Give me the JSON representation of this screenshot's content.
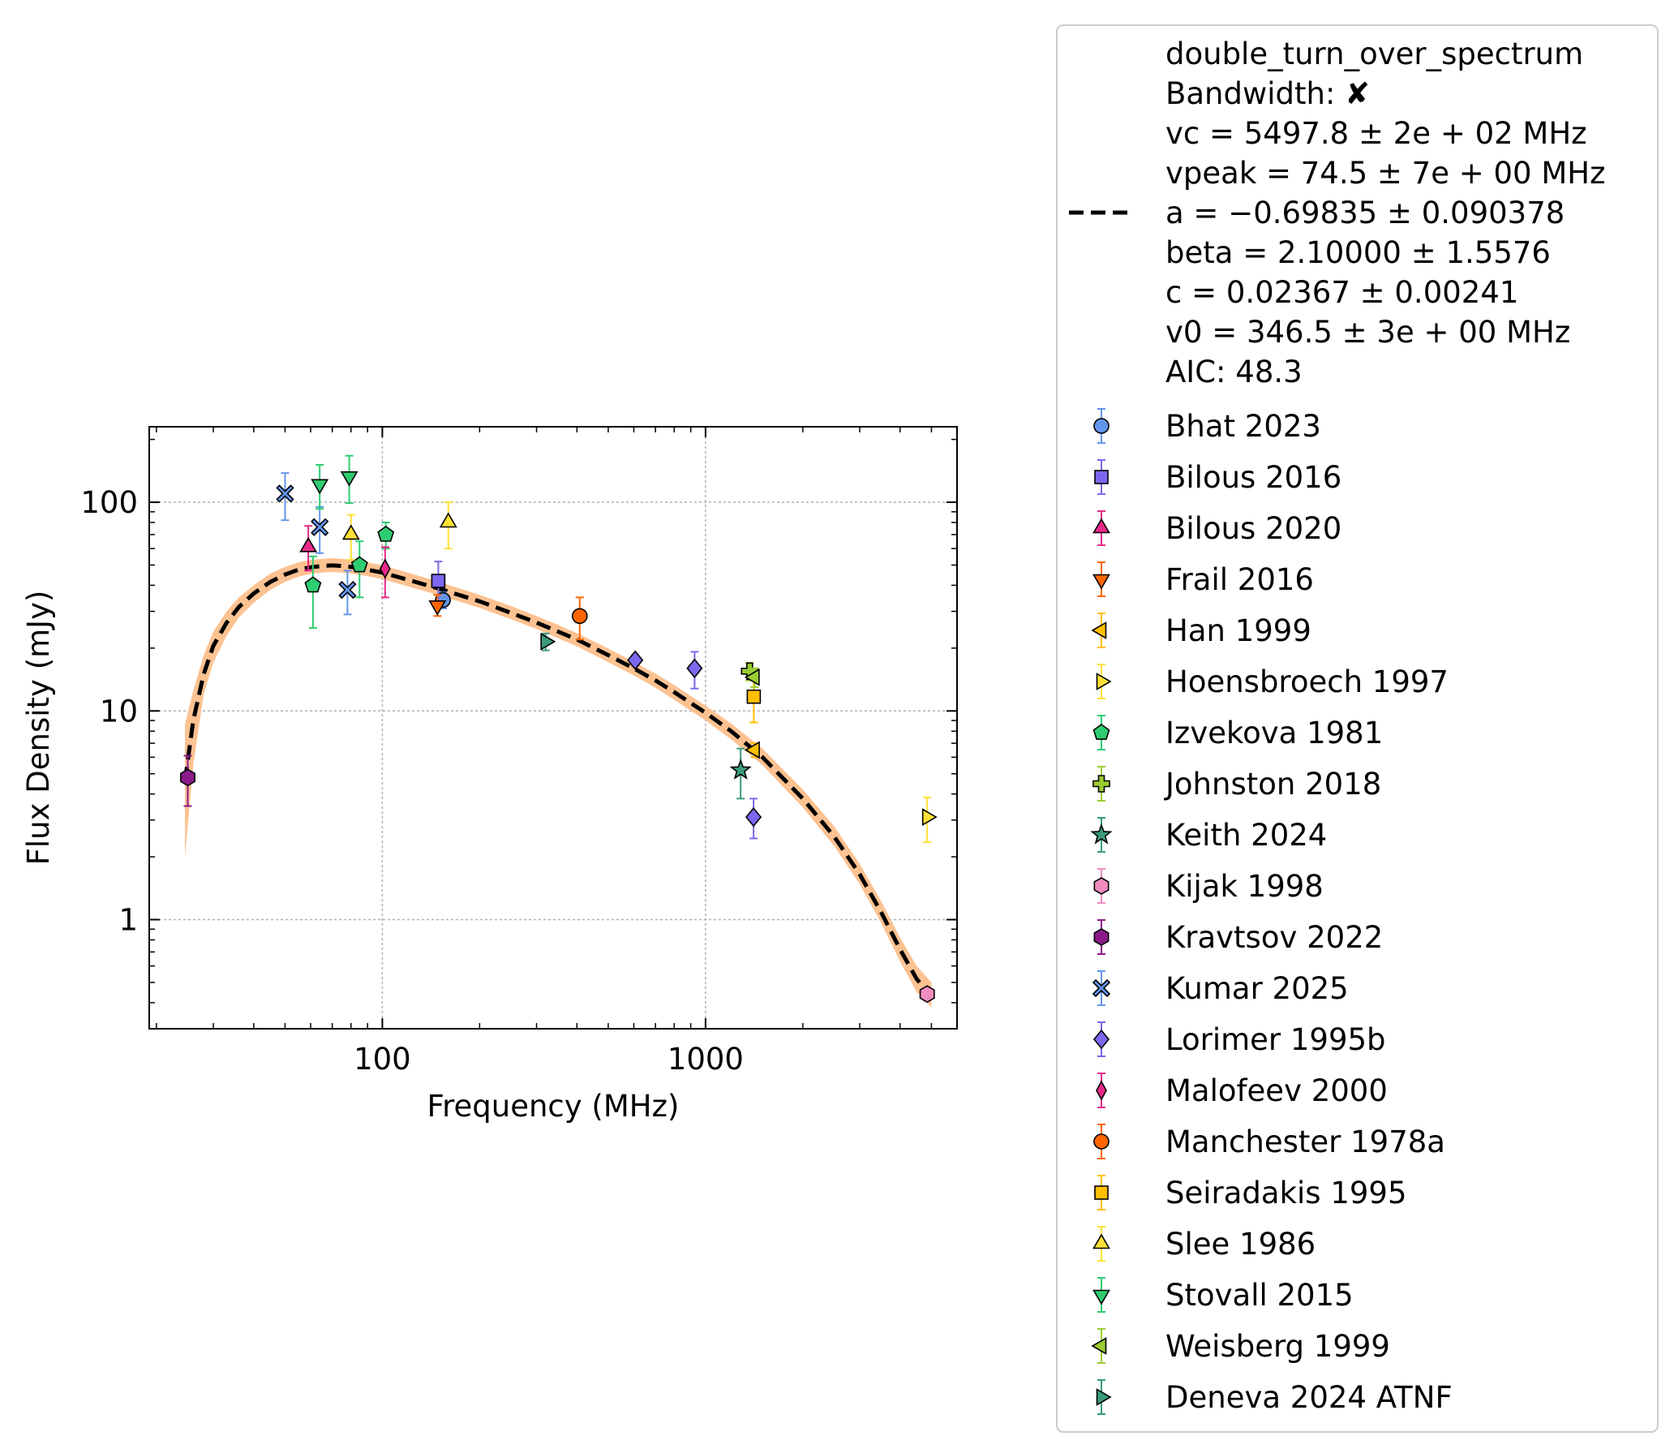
{
  "chart_data": {
    "type": "scatter",
    "xlabel": "Frequency (MHz)",
    "ylabel": "Flux Density (mJy)",
    "xscale": "log",
    "yscale": "log",
    "xlim": [
      19,
      6000
    ],
    "ylim": [
      0.3,
      230
    ],
    "grid": true,
    "x_ticks": [
      {
        "value": 100,
        "label": "100"
      },
      {
        "value": 1000,
        "label": "1000"
      }
    ],
    "y_ticks": [
      {
        "value": 1,
        "label": "1"
      },
      {
        "value": 10,
        "label": "10"
      },
      {
        "value": 100,
        "label": "100"
      }
    ],
    "legend_position": "outside-right",
    "fit": {
      "label_lines": [
        "double_turn_over_spectrum",
        "Bandwidth: ✘",
        "vc = 5497.8 ± 2e + 02 MHz",
        "vpeak = 74.5 ± 7e + 00 MHz",
        "a = −0.69835 ± 0.090378",
        "beta = 2.10000 ± 1.5576",
        "c = 0.02367 ± 0.00241",
        "v0 = 346.5 ± 3e + 00 MHz",
        "AIC: 48.3"
      ],
      "line_color": "#000000",
      "band_color": "#fdbf8c",
      "curve": [
        [
          24.5,
          4.6
        ],
        [
          26,
          9.0
        ],
        [
          28,
          15
        ],
        [
          30,
          20.5
        ],
        [
          33,
          26.5
        ],
        [
          36,
          31.5
        ],
        [
          40,
          36.5
        ],
        [
          45,
          41.5
        ],
        [
          50,
          45
        ],
        [
          55,
          47.5
        ],
        [
          60,
          48.8
        ],
        [
          65,
          49.5
        ],
        [
          70,
          49.8
        ],
        [
          75,
          49.5
        ],
        [
          80,
          49.0
        ],
        [
          90,
          47.5
        ],
        [
          100,
          46.0
        ],
        [
          120,
          42.5
        ],
        [
          150,
          38.5
        ],
        [
          200,
          33.5
        ],
        [
          250,
          29.5
        ],
        [
          300,
          26.5
        ],
        [
          350,
          24
        ],
        [
          400,
          22
        ],
        [
          500,
          18.5
        ],
        [
          600,
          16
        ],
        [
          700,
          14
        ],
        [
          800,
          12.3
        ],
        [
          1000,
          9.8
        ],
        [
          1200,
          8.0
        ],
        [
          1500,
          6.0
        ],
        [
          2000,
          3.8
        ],
        [
          2500,
          2.5
        ],
        [
          3000,
          1.65
        ],
        [
          3500,
          1.08
        ],
        [
          4000,
          0.72
        ],
        [
          4500,
          0.52
        ],
        [
          5000,
          0.43
        ]
      ],
      "band": [
        [
          24.5,
          2.0,
          8.6
        ],
        [
          26,
          5.5,
          12.5
        ],
        [
          28,
          12,
          18.5
        ],
        [
          30,
          17,
          24
        ],
        [
          33,
          23,
          30
        ],
        [
          36,
          28,
          35
        ],
        [
          40,
          33,
          40
        ],
        [
          45,
          38,
          45.5
        ],
        [
          50,
          41.5,
          49
        ],
        [
          55,
          44,
          51.5
        ],
        [
          60,
          45.3,
          53
        ],
        [
          65,
          46,
          53.5
        ],
        [
          70,
          46.3,
          54
        ],
        [
          75,
          46,
          53.5
        ],
        [
          80,
          45.6,
          53
        ],
        [
          90,
          44.2,
          51.5
        ],
        [
          100,
          42.8,
          49.8
        ],
        [
          120,
          39.5,
          46
        ],
        [
          150,
          35.8,
          41.5
        ],
        [
          200,
          31.2,
          36
        ],
        [
          250,
          27.5,
          31.8
        ],
        [
          300,
          24.7,
          28.5
        ],
        [
          350,
          22.3,
          25.8
        ],
        [
          400,
          20.4,
          23.6
        ],
        [
          500,
          17.1,
          19.9
        ],
        [
          600,
          14.8,
          17.2
        ],
        [
          700,
          12.9,
          15.1
        ],
        [
          800,
          11.3,
          13.3
        ],
        [
          1000,
          9.0,
          10.6
        ],
        [
          1200,
          7.3,
          8.7
        ],
        [
          1500,
          5.5,
          6.6
        ],
        [
          2000,
          3.45,
          4.2
        ],
        [
          2500,
          2.25,
          2.8
        ],
        [
          3000,
          1.48,
          1.85
        ],
        [
          3500,
          0.96,
          1.22
        ],
        [
          4000,
          0.63,
          0.82
        ],
        [
          4500,
          0.45,
          0.6
        ],
        [
          5000,
          0.38,
          0.5
        ]
      ]
    },
    "series": [
      {
        "name": "Bhat 2023",
        "marker": "circle",
        "color": "#6495ed",
        "points": [
          {
            "x": 154,
            "y": 34,
            "ylo": 31,
            "yhi": 37
          }
        ]
      },
      {
        "name": "Bilous 2016",
        "marker": "square",
        "color": "#7b68ee",
        "points": [
          {
            "x": 149,
            "y": 42,
            "ylo": 33,
            "yhi": 52
          }
        ]
      },
      {
        "name": "Bilous 2020",
        "marker": "triangle-up",
        "color": "#e7298a",
        "points": [
          {
            "x": 59,
            "y": 61,
            "ylo": 47,
            "yhi": 77
          }
        ]
      },
      {
        "name": "Frail 2016",
        "marker": "triangle-down",
        "color": "#ff6600",
        "points": [
          {
            "x": 148,
            "y": 32,
            "ylo": 28.5,
            "yhi": 36
          }
        ]
      },
      {
        "name": "Han 1999",
        "marker": "triangle-left",
        "color": "#ffbf00",
        "points": [
          {
            "x": 1420,
            "y": 6.5,
            "ylo": 6.0,
            "yhi": 7.0
          }
        ]
      },
      {
        "name": "Hoensbroech 1997",
        "marker": "triangle-right",
        "color": "#ffe135",
        "points": [
          {
            "x": 4850,
            "y": 3.1,
            "ylo": 2.35,
            "yhi": 3.85
          }
        ]
      },
      {
        "name": "Izvekova 1981",
        "marker": "pentagon",
        "color": "#2ecc71",
        "points": [
          {
            "x": 61,
            "y": 40,
            "ylo": 25,
            "yhi": 55
          },
          {
            "x": 85,
            "y": 50,
            "ylo": 35,
            "yhi": 65
          },
          {
            "x": 102.5,
            "y": 70,
            "ylo": 60,
            "yhi": 80
          }
        ]
      },
      {
        "name": "Johnston 2018",
        "marker": "plus",
        "color": "#9acd32",
        "points": [
          {
            "x": 1369,
            "y": 15.5,
            "ylo": 14,
            "yhi": 17
          }
        ]
      },
      {
        "name": "Keith 2024",
        "marker": "star",
        "color": "#3b9a7c",
        "points": [
          {
            "x": 1284,
            "y": 5.2,
            "ylo": 3.8,
            "yhi": 6.6
          }
        ]
      },
      {
        "name": "Kijak 1998",
        "marker": "hexagon",
        "color": "#f08cc0",
        "points": [
          {
            "x": 4850,
            "y": 0.44,
            "ylo": 0.41,
            "yhi": 0.47
          }
        ]
      },
      {
        "name": "Kravtsov 2022",
        "marker": "hexagon",
        "color": "#8b1a89",
        "points": [
          {
            "x": 25,
            "y": 4.8,
            "ylo": 3.5,
            "yhi": 6.1
          }
        ]
      },
      {
        "name": "Kumar 2025",
        "marker": "x",
        "color": "#6495ed",
        "points": [
          {
            "x": 50,
            "y": 110,
            "ylo": 82,
            "yhi": 138
          },
          {
            "x": 64,
            "y": 76,
            "ylo": 57,
            "yhi": 95
          },
          {
            "x": 78,
            "y": 38,
            "ylo": 29,
            "yhi": 47
          }
        ]
      },
      {
        "name": "Lorimer 1995b",
        "marker": "diamond",
        "color": "#7b68ee",
        "points": [
          {
            "x": 606,
            "y": 17.5,
            "ylo": 16.5,
            "yhi": 18.5
          },
          {
            "x": 925,
            "y": 16,
            "ylo": 12.8,
            "yhi": 19.2
          },
          {
            "x": 1408,
            "y": 3.1,
            "ylo": 2.45,
            "yhi": 3.8
          }
        ]
      },
      {
        "name": "Malofeev 2000",
        "marker": "thin-diamond",
        "color": "#e7298a",
        "points": [
          {
            "x": 102,
            "y": 48,
            "ylo": 35,
            "yhi": 61
          }
        ]
      },
      {
        "name": "Manchester 1978a",
        "marker": "circle",
        "color": "#ff6600",
        "points": [
          {
            "x": 408,
            "y": 28.5,
            "ylo": 22,
            "yhi": 35
          }
        ]
      },
      {
        "name": "Seiradakis 1995",
        "marker": "square",
        "color": "#ffbf00",
        "points": [
          {
            "x": 1410,
            "y": 11.7,
            "ylo": 8.8,
            "yhi": 14.6
          }
        ]
      },
      {
        "name": "Slee 1986",
        "marker": "triangle-up",
        "color": "#ffe135",
        "points": [
          {
            "x": 80,
            "y": 70,
            "ylo": 53,
            "yhi": 87
          },
          {
            "x": 160,
            "y": 80,
            "ylo": 60,
            "yhi": 100
          }
        ]
      },
      {
        "name": "Stovall 2015",
        "marker": "triangle-down",
        "color": "#2ecc71",
        "points": [
          {
            "x": 64,
            "y": 122,
            "ylo": 93,
            "yhi": 151
          },
          {
            "x": 79,
            "y": 133,
            "ylo": 99,
            "yhi": 167
          }
        ]
      },
      {
        "name": "Weisberg 1999",
        "marker": "triangle-left",
        "color": "#9acd32",
        "points": [
          {
            "x": 1418,
            "y": 14.5,
            "ylo": 13,
            "yhi": 16
          }
        ]
      },
      {
        "name": "Deneva 2024 ATNF",
        "marker": "triangle-right",
        "color": "#3b9a7c",
        "points": [
          {
            "x": 320,
            "y": 21.5,
            "ylo": 19.5,
            "yhi": 23.5
          }
        ]
      }
    ]
  }
}
